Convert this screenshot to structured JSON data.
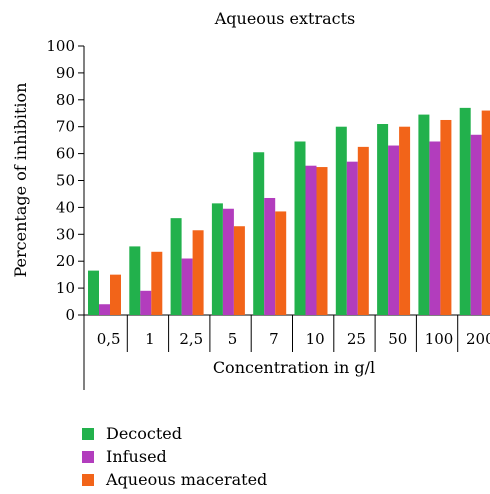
{
  "chart_data": {
    "type": "bar",
    "title": "Aqueous extracts",
    "xlabel": "Concentration in g/l",
    "ylabel": "Percentage of inhibition",
    "ylim": [
      0,
      100
    ],
    "yticks": [
      0,
      10,
      20,
      30,
      40,
      50,
      60,
      70,
      80,
      90,
      100
    ],
    "categories": [
      "0,5",
      "1",
      "2,5",
      "5",
      "7",
      "10",
      "25",
      "50",
      "100",
      "200"
    ],
    "series": [
      {
        "name": "Decocted",
        "color": "#22b14c",
        "values": [
          16.5,
          25.5,
          36,
          41.5,
          60.5,
          64.5,
          70,
          71,
          74.5,
          77
        ]
      },
      {
        "name": "Infused",
        "color": "#b23dbd",
        "values": [
          4,
          9,
          21,
          39.5,
          43.5,
          55.5,
          57,
          63,
          64.5,
          67
        ]
      },
      {
        "name": "Aqueous macerated",
        "color": "#f26419",
        "values": [
          15,
          23.5,
          31.5,
          33,
          38.5,
          55,
          62.5,
          70,
          72.5,
          76
        ]
      }
    ],
    "grid": false,
    "legend_position": "bottom-left"
  }
}
